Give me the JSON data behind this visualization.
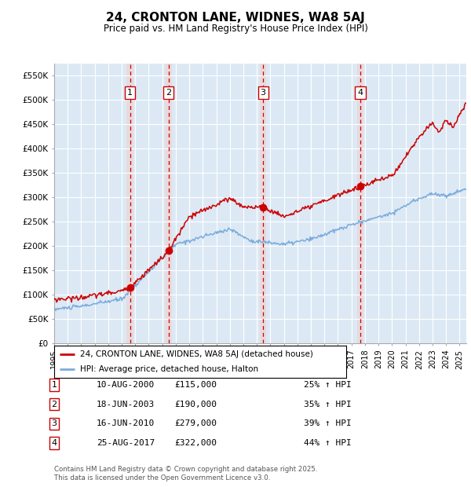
{
  "title": "24, CRONTON LANE, WIDNES, WA8 5AJ",
  "subtitle": "Price paid vs. HM Land Registry's House Price Index (HPI)",
  "background_color": "#ffffff",
  "plot_bg_color": "#dce9f5",
  "grid_color": "#ffffff",
  "ylim": [
    0,
    575000
  ],
  "yticks": [
    0,
    50000,
    100000,
    150000,
    200000,
    250000,
    300000,
    350000,
    400000,
    450000,
    500000,
    550000
  ],
  "ytick_labels": [
    "£0",
    "£50K",
    "£100K",
    "£150K",
    "£200K",
    "£250K",
    "£300K",
    "£350K",
    "£400K",
    "£450K",
    "£500K",
    "£550K"
  ],
  "sale_dates_num": [
    2000.61,
    2003.46,
    2010.46,
    2017.65
  ],
  "sale_prices": [
    115000,
    190000,
    279000,
    322000
  ],
  "sale_labels": [
    "1",
    "2",
    "3",
    "4"
  ],
  "vline_color": "#cc0000",
  "vband_color": "#f0d0d0",
  "vband_alpha": 0.6,
  "marker_color": "#cc0000",
  "line1_color": "#cc0000",
  "line2_color": "#7aabdb",
  "legend_label1": "24, CRONTON LANE, WIDNES, WA8 5AJ (detached house)",
  "legend_label2": "HPI: Average price, detached house, Halton",
  "table_entries": [
    [
      "1",
      "10-AUG-2000",
      "£115,000",
      "25% ↑ HPI"
    ],
    [
      "2",
      "18-JUN-2003",
      "£190,000",
      "35% ↑ HPI"
    ],
    [
      "3",
      "16-JUN-2010",
      "£279,000",
      "39% ↑ HPI"
    ],
    [
      "4",
      "25-AUG-2017",
      "£322,000",
      "44% ↑ HPI"
    ]
  ],
  "footer": "Contains HM Land Registry data © Crown copyright and database right 2025.\nThis data is licensed under the Open Government Licence v3.0.",
  "xstart": 1995.0,
  "xend": 2025.5
}
